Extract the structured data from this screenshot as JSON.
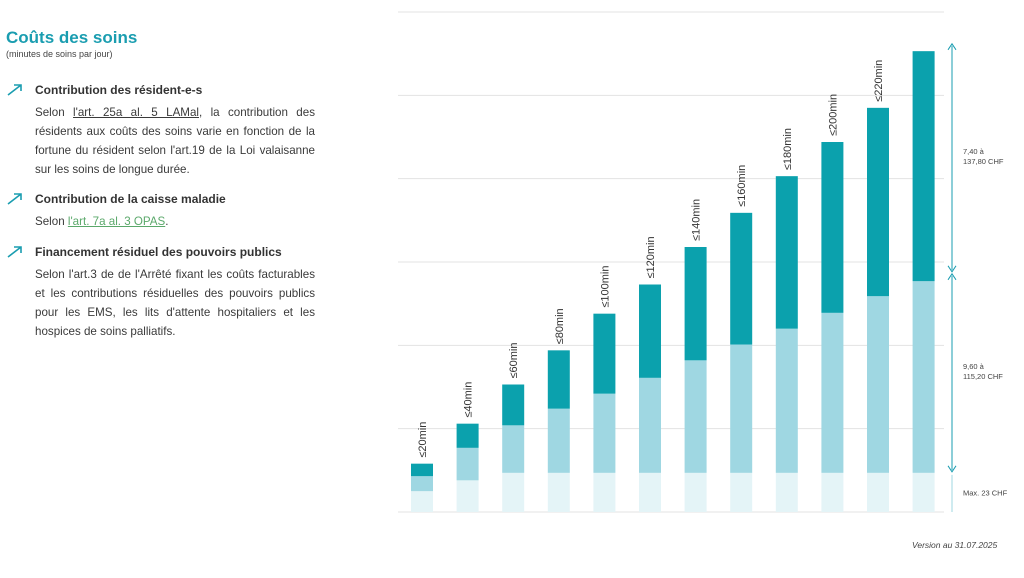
{
  "heading": {
    "title": "Coûts des soins",
    "subtitle": "(minutes de soins par jour)"
  },
  "sections": [
    {
      "title": "Contribution des résident-e-s",
      "pre": "Selon ",
      "ref": "l'art. 25a al. 5 LAMal",
      "post": ", la contribution des résidents aux coûts des soins varie en fonction de la fortune du résident selon l'art.19 de la Loi valaisanne sur les soins de longue durée."
    },
    {
      "title": "Contribution de la caisse maladie",
      "pre": "Selon ",
      "ref": "l'art. 7a al. 3 OPAS",
      "post": "."
    },
    {
      "title": "Financement résiduel des pouvoirs publics",
      "pre": "Selon l'art.3 de de l'Arrêté fixant les coûts facturables et les contributions résiduelles des pouvoirs publics pour les EMS, les lits d'attente hospitaliers et les hospices de soins palliatifs.",
      "ref": "",
      "post": ""
    }
  ],
  "version": "Version  au 31.07.2025",
  "icons": {
    "section_marker": "arrow-up-right-icon"
  },
  "colors": {
    "accent": "#1a9db0",
    "dark": "#0ba1ad",
    "mid": "#9fd7e2",
    "light": "#e4f4f7",
    "link_green": "#5aa86a"
  },
  "chart_data": {
    "type": "bar",
    "stacked": true,
    "categories": [
      "≤20min",
      "≤40min",
      "≤60min",
      "≤80min",
      "≤100min",
      "≤120min",
      "≤140min",
      "≤160min",
      "≤180min",
      "≤200min",
      "≤220min",
      ""
    ],
    "series": [
      {
        "values": [
          1.25,
          1.9,
          2.35,
          2.35,
          2.35,
          2.35,
          2.35,
          2.35,
          2.35,
          2.35,
          2.35,
          2.35
        ]
      },
      {
        "values": [
          0.9,
          1.95,
          2.85,
          3.85,
          4.75,
          5.7,
          6.75,
          7.7,
          8.65,
          9.6,
          10.6,
          11.5
        ]
      },
      {
        "values": [
          0.75,
          1.45,
          2.45,
          3.5,
          4.8,
          5.6,
          6.8,
          7.9,
          9.15,
          10.25,
          11.3,
          13.8
        ]
      }
    ],
    "ylim": [
      0,
      30
    ],
    "grid": true,
    "annotations": [
      {
        "label": "7,40 à",
        "label2": "137,80 CHF",
        "from": 14.35,
        "to": 28.15
      },
      {
        "label": "9,60 à",
        "label2": "115,20 CHF",
        "from": 2.35,
        "to": 14.35
      },
      {
        "label": "Max. 23 CHF",
        "label2": "",
        "from": 0,
        "to": 2.35
      }
    ]
  }
}
